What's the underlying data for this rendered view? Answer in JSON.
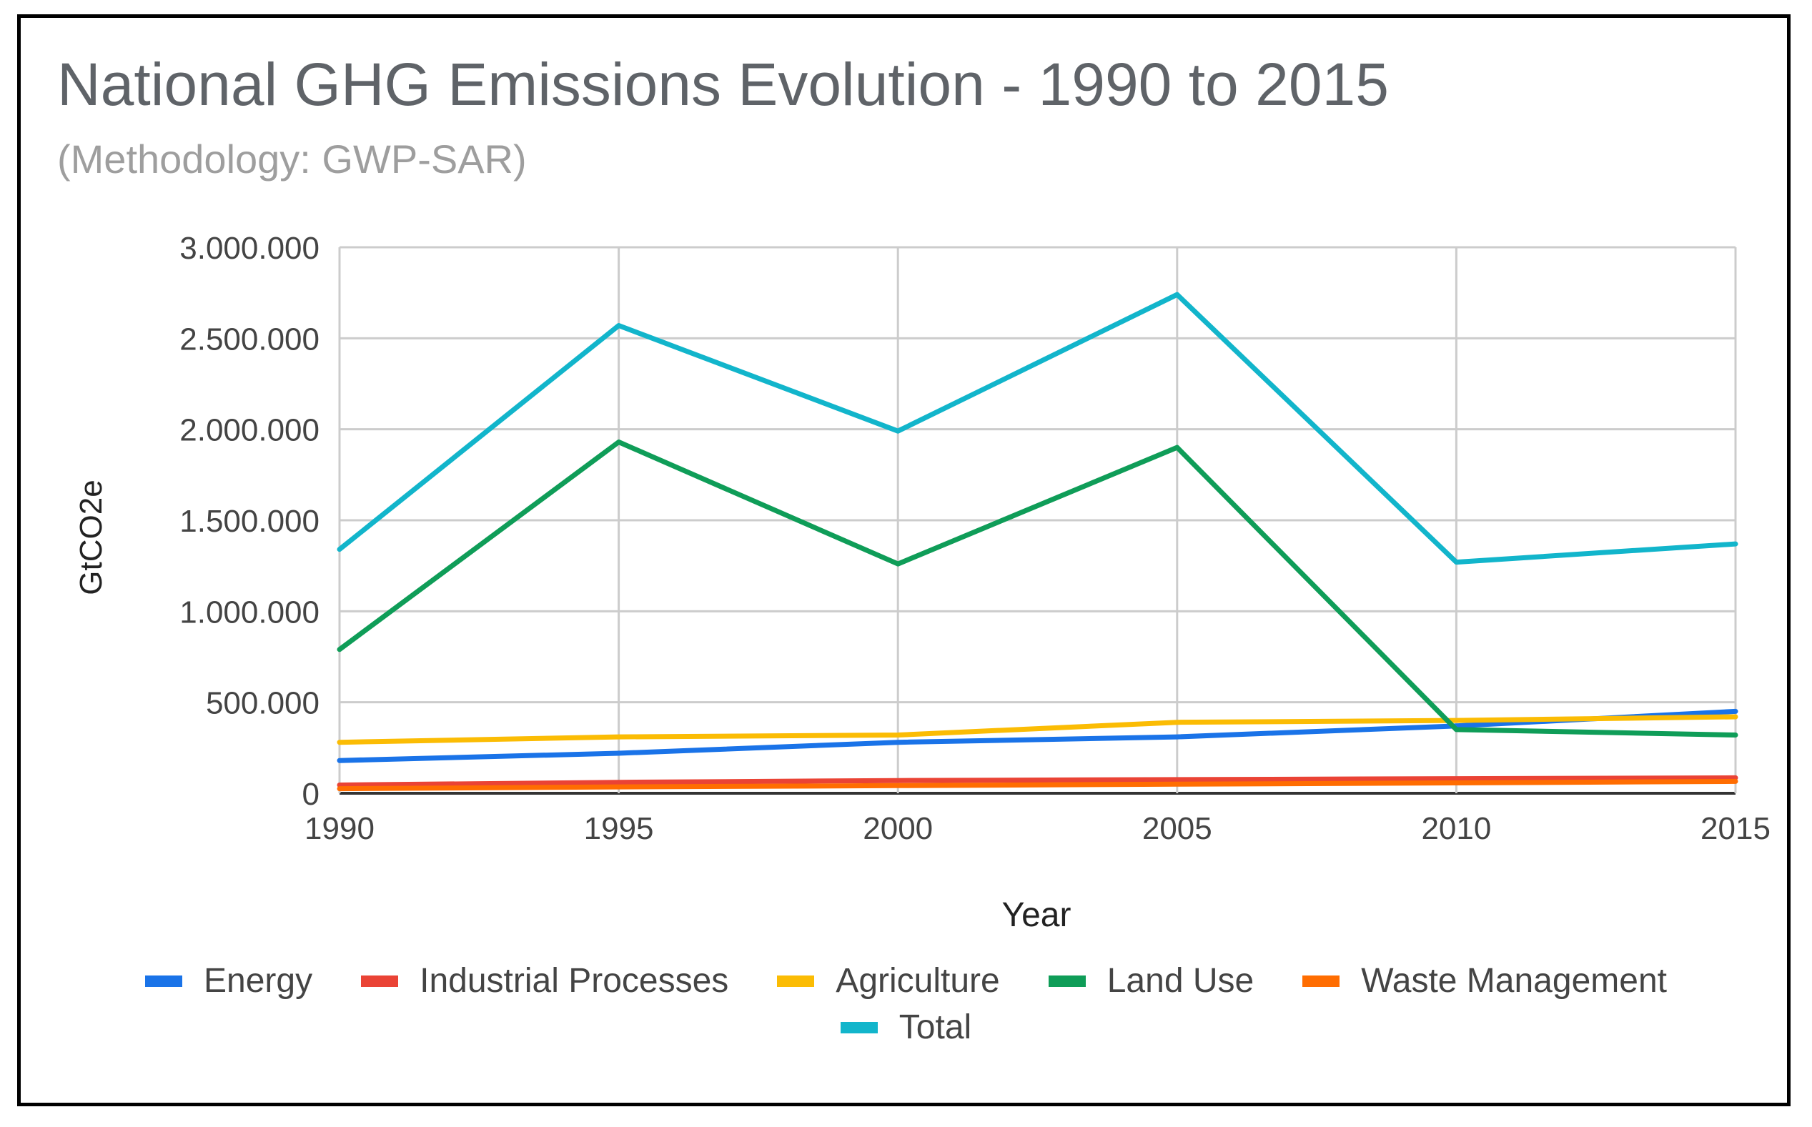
{
  "chart_data": {
    "type": "line",
    "title": "National GHG Emissions Evolution - 1990 to 2015",
    "subtitle": "(Methodology: GWP-SAR)",
    "xlabel": "Year",
    "ylabel": "GtCO2e",
    "x": [
      "1990",
      "1995",
      "2000",
      "2005",
      "2010",
      "2015"
    ],
    "ylim": [
      0,
      3000000
    ],
    "yticks": [
      0,
      500000,
      1000000,
      1500000,
      2000000,
      2500000,
      3000000
    ],
    "ytick_labels": [
      "0",
      "500.000",
      "1.000.000",
      "1.500.000",
      "2.000.000",
      "2.500.000",
      "3.000.000"
    ],
    "grid": true,
    "legend_position": "bottom",
    "series": [
      {
        "name": "Energy",
        "color": "#1a73e8",
        "values": [
          180000,
          220000,
          280000,
          310000,
          370000,
          450000
        ]
      },
      {
        "name": "Industrial Processes",
        "color": "#ea4335",
        "values": [
          45000,
          60000,
          70000,
          75000,
          80000,
          85000
        ]
      },
      {
        "name": "Agriculture",
        "color": "#fbbc04",
        "values": [
          280000,
          310000,
          320000,
          390000,
          400000,
          420000
        ]
      },
      {
        "name": "Land Use",
        "color": "#0f9d58",
        "values": [
          790000,
          1930000,
          1260000,
          1900000,
          350000,
          320000
        ]
      },
      {
        "name": "Waste Management",
        "color": "#ff6d01",
        "values": [
          25000,
          35000,
          42000,
          50000,
          57000,
          65000
        ]
      },
      {
        "name": "Total",
        "color": "#12b5cb",
        "values": [
          1340000,
          2570000,
          1990000,
          2740000,
          1270000,
          1370000
        ]
      }
    ]
  }
}
